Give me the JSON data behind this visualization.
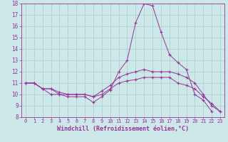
{
  "bg_color": "#cce8e8",
  "grid_color": "#aacccc",
  "line_color": "#993399",
  "xlabel": "Windchill (Refroidissement éolien,°C)",
  "ylim": [
    8,
    18
  ],
  "xlim": [
    -0.5,
    23.5
  ],
  "yticks": [
    8,
    9,
    10,
    11,
    12,
    13,
    14,
    15,
    16,
    17,
    18
  ],
  "xticks": [
    0,
    1,
    2,
    3,
    4,
    5,
    6,
    7,
    8,
    9,
    10,
    11,
    12,
    13,
    14,
    15,
    16,
    17,
    18,
    19,
    20,
    21,
    22,
    23
  ],
  "series": [
    {
      "x": [
        0,
        1,
        2,
        3,
        4,
        5,
        6,
        7,
        8,
        9,
        10,
        11,
        12,
        13,
        14,
        15,
        16,
        17,
        18,
        19,
        20,
        21,
        22
      ],
      "y": [
        11.0,
        11.0,
        10.5,
        10.0,
        10.0,
        9.8,
        9.8,
        9.8,
        9.3,
        9.8,
        10.4,
        12.0,
        13.0,
        16.3,
        18.0,
        17.8,
        15.5,
        13.5,
        12.8,
        12.2,
        10.0,
        9.5,
        8.5
      ]
    },
    {
      "x": [
        0,
        1,
        2,
        3,
        4,
        5,
        6,
        7,
        8,
        9,
        10,
        11,
        12,
        13,
        14,
        15,
        16,
        17,
        18,
        19,
        20,
        21,
        22,
        23
      ],
      "y": [
        11.0,
        11.0,
        10.5,
        10.5,
        10.0,
        10.0,
        10.0,
        10.0,
        9.8,
        10.3,
        10.8,
        11.5,
        11.8,
        12.0,
        12.2,
        12.0,
        12.0,
        12.0,
        11.8,
        11.5,
        11.0,
        10.0,
        9.0,
        8.5
      ]
    },
    {
      "x": [
        0,
        1,
        2,
        3,
        4,
        5,
        6,
        7,
        8,
        9,
        10,
        11,
        12,
        13,
        14,
        15,
        16,
        17,
        18,
        19,
        20,
        21,
        22,
        23
      ],
      "y": [
        11.0,
        11.0,
        10.5,
        10.5,
        10.2,
        10.0,
        10.0,
        10.0,
        9.8,
        10.0,
        10.5,
        11.0,
        11.2,
        11.3,
        11.5,
        11.5,
        11.5,
        11.5,
        11.0,
        10.8,
        10.5,
        9.8,
        9.2,
        8.5
      ]
    }
  ]
}
